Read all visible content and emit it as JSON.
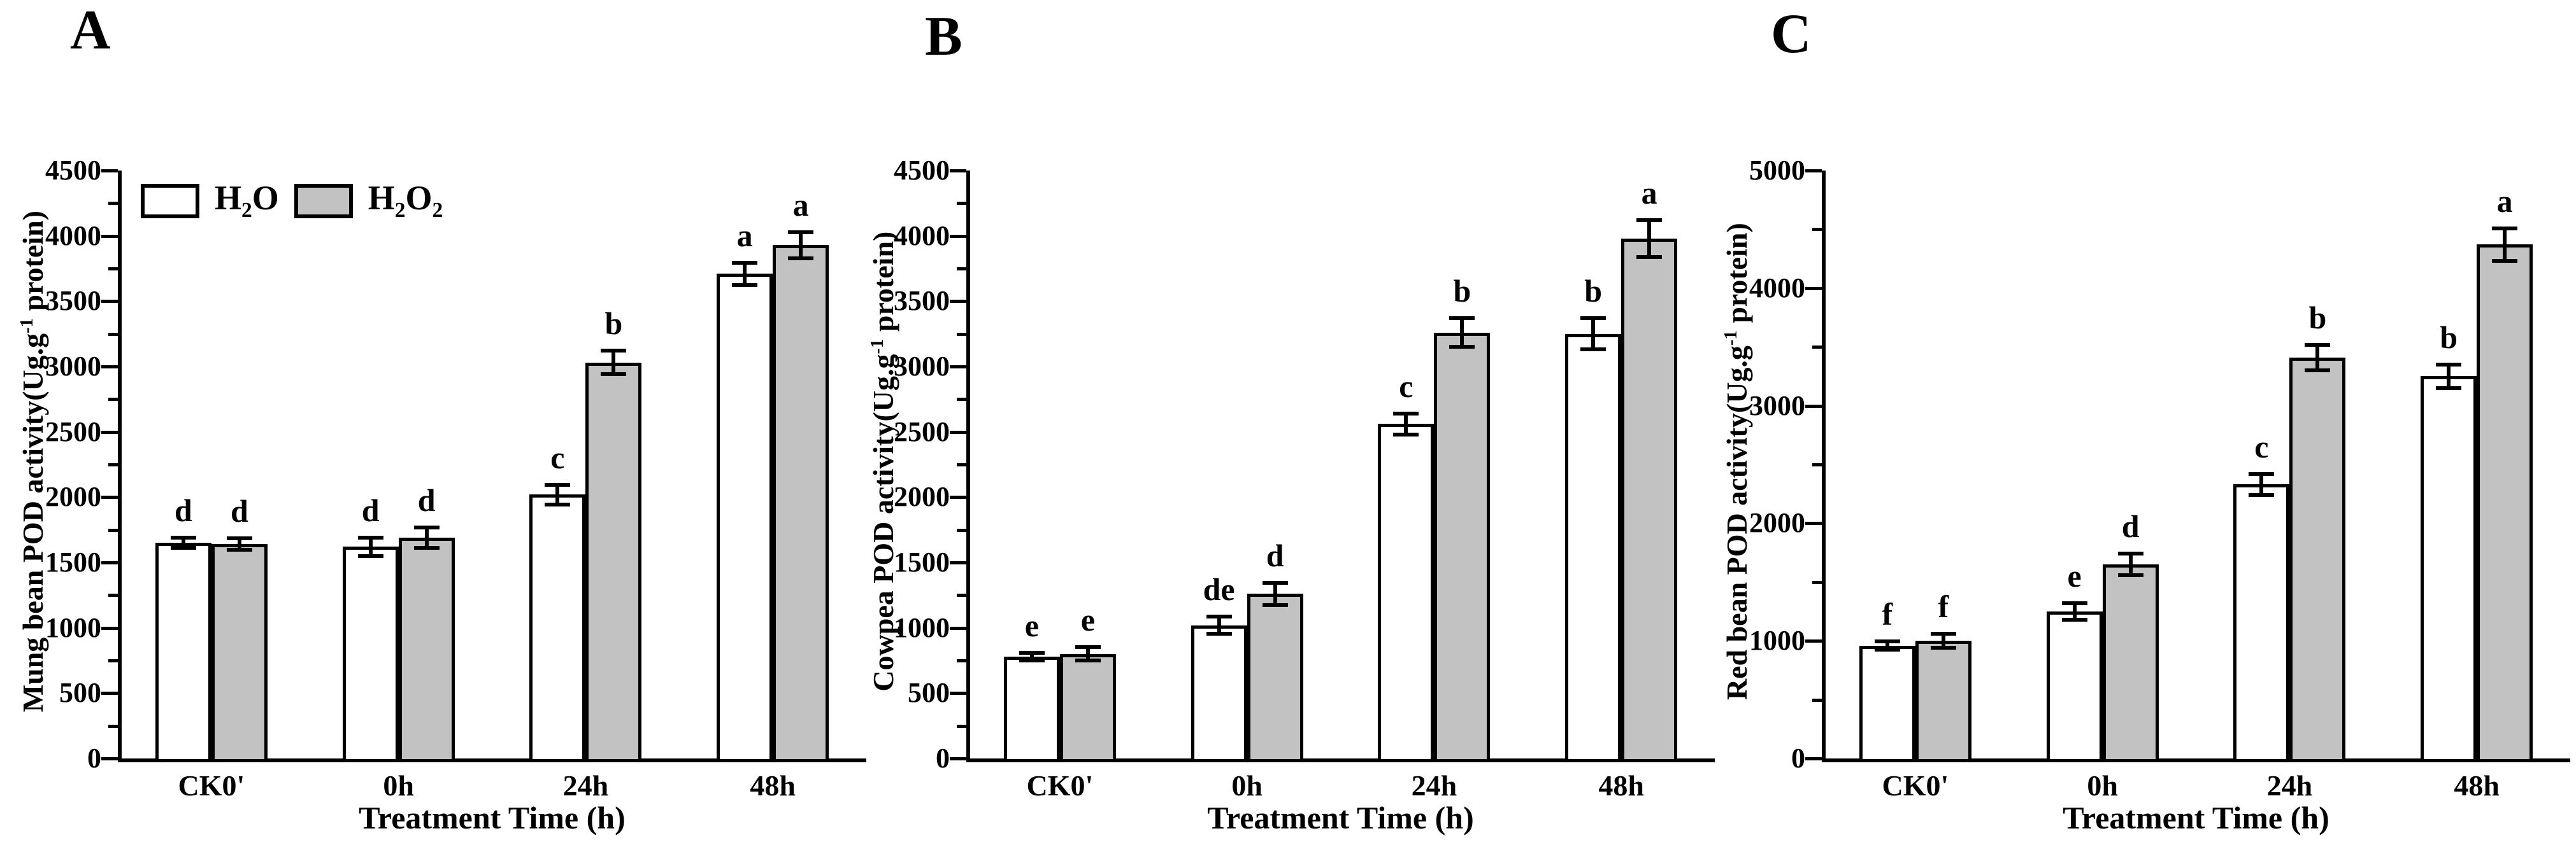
{
  "figure": {
    "background": "#ffffff",
    "x_axis_label": "Treatment Time（h）",
    "categories": [
      "CK0'",
      "0h",
      "24h",
      "48h"
    ],
    "legend": {
      "entries": [
        {
          "label": "H2O",
          "segments": [
            {
              "t": "H"
            },
            {
              "t": "2",
              "sub": true
            },
            {
              "t": "O"
            }
          ],
          "fill": "#ffffff",
          "stroke": "#000000"
        },
        {
          "label": "H2O2",
          "segments": [
            {
              "t": "H"
            },
            {
              "t": "2",
              "sub": true
            },
            {
              "t": "O"
            },
            {
              "t": "2",
              "sub": true
            }
          ],
          "fill": "#c2c2c2",
          "stroke": "#000000"
        }
      ],
      "position": "top-left of panel A"
    },
    "colors": {
      "h2o_fill": "#ffffff",
      "h2o2_fill": "#c2c2c2",
      "stroke": "#000000",
      "text": "#000000"
    }
  },
  "chart_data": [
    {
      "type": "bar",
      "panel_label": "A",
      "ylabel": "Mung bean POD activity(Ug.g-1 protein)",
      "ylabel_segments": [
        {
          "t": "Mung bean POD activity(Ug.g"
        },
        {
          "t": "-1",
          "sup": true
        },
        {
          "t": " protein)"
        }
      ],
      "xlabel": "Treatment Time（h）",
      "categories": [
        "CK0'",
        "0h",
        "24h",
        "48h"
      ],
      "ylim": [
        0,
        4500
      ],
      "ytick_step": 500,
      "yminor_step": 250,
      "grid": false,
      "legend_visible": true,
      "series": [
        {
          "name": "H2O",
          "values": [
            1650,
            1620,
            2020,
            3710
          ],
          "errors": [
            40,
            70,
            75,
            85
          ],
          "sig_letters": [
            "d",
            "d",
            "c",
            "a"
          ]
        },
        {
          "name": "H2O2",
          "values": [
            1640,
            1690,
            3030,
            3930
          ],
          "errors": [
            45,
            80,
            90,
            100
          ],
          "sig_letters": [
            "d",
            "d",
            "b",
            "a"
          ]
        }
      ]
    },
    {
      "type": "bar",
      "panel_label": "B",
      "ylabel": "Cowpea POD activity(Ug.g-1 protein)",
      "ylabel_segments": [
        {
          "t": "Cowpea POD activity(Ug.g"
        },
        {
          "t": "-1",
          "sup": true
        },
        {
          "t": " protein)"
        }
      ],
      "xlabel": "Treatment Time（h）",
      "categories": [
        "CK0'",
        "0h",
        "24h",
        "48h"
      ],
      "ylim": [
        0,
        4500
      ],
      "ytick_step": 500,
      "yminor_step": 250,
      "grid": false,
      "legend_visible": false,
      "series": [
        {
          "name": "H2O",
          "values": [
            780,
            1020,
            2560,
            3250
          ],
          "errors": [
            30,
            65,
            80,
            120
          ],
          "sig_letters": [
            "e",
            "de",
            "c",
            "b"
          ]
        },
        {
          "name": "H2O2",
          "values": [
            800,
            1260,
            3260,
            3980
          ],
          "errors": [
            50,
            85,
            110,
            140
          ],
          "sig_letters": [
            "e",
            "d",
            "b",
            "a"
          ]
        }
      ]
    },
    {
      "type": "bar",
      "panel_label": "C",
      "ylabel": "Red bean POD activity(Ug.g-1 protein)",
      "ylabel_segments": [
        {
          "t": "Red bean POD activity(Ug.g"
        },
        {
          "t": "-1",
          "sup": true
        },
        {
          "t": " protein)"
        }
      ],
      "xlabel": "Treatment Time（h）",
      "categories": [
        "CK0'",
        "0h",
        "24h",
        "48h"
      ],
      "ylim": [
        0,
        5000
      ],
      "ytick_step": 1000,
      "yminor_step": 500,
      "grid": false,
      "legend_visible": false,
      "series": [
        {
          "name": "H2O",
          "values": [
            960,
            1250,
            2330,
            3250
          ],
          "errors": [
            35,
            70,
            90,
            100
          ],
          "sig_letters": [
            "f",
            "e",
            "c",
            "b"
          ]
        },
        {
          "name": "H2O2",
          "values": [
            1000,
            1650,
            3410,
            4370
          ],
          "errors": [
            60,
            90,
            110,
            140
          ],
          "sig_letters": [
            "f",
            "d",
            "b",
            "a"
          ]
        }
      ]
    }
  ]
}
